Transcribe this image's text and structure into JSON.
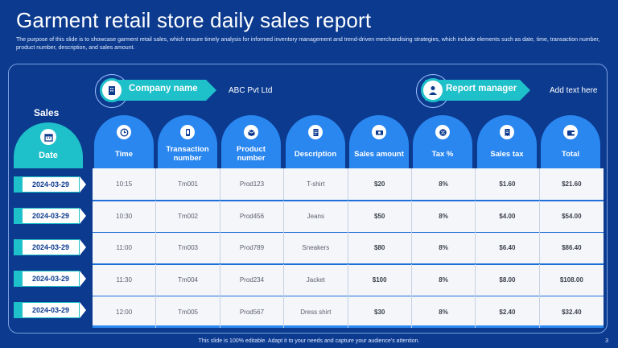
{
  "title": "Garment retail store daily sales report",
  "description": "The purpose of this slide is to showcase garment retail sales, which ensure timely analysis for informed inventory management and trend-driven merchandising strategies, which include elements such as date, time, transaction number, product number, description, and sales amount.",
  "company": {
    "label": "Company name",
    "value": "ABC Pvt Ltd",
    "icon": "building-icon"
  },
  "manager": {
    "label": "Report manager",
    "value": "Add text here",
    "icon": "person-icon"
  },
  "sales_label": "Sales",
  "date_header": {
    "label": "Date",
    "icon": "calendar-icon"
  },
  "columns": [
    {
      "label": "Time",
      "icon": "clock-icon"
    },
    {
      "label": "Transaction number",
      "icon": "phone-icon"
    },
    {
      "label": "Product number",
      "icon": "box-icon"
    },
    {
      "label": "Description",
      "icon": "document-icon"
    },
    {
      "label": "Sales amount",
      "icon": "money-icon"
    },
    {
      "label": "Tax %",
      "icon": "tax-icon"
    },
    {
      "label": "Sales tax",
      "icon": "receipt-icon"
    },
    {
      "label": "Total",
      "icon": "wallet-icon"
    }
  ],
  "rows": [
    {
      "date": "2024-03-29",
      "cells": [
        "10:15",
        "Tm001",
        "Prod123",
        "T-shirt",
        "$20",
        "8%",
        "$1.60",
        "$21.60"
      ]
    },
    {
      "date": "2024-03-29",
      "cells": [
        "10:30",
        "Tm002",
        "Prod456",
        "Jeans",
        "$50",
        "8%",
        "$4.00",
        "$54.00"
      ]
    },
    {
      "date": "2024-03-29",
      "cells": [
        "11:00",
        "Tm003",
        "Prod789",
        "Sneakers",
        "$80",
        "8%",
        "$6.40",
        "$86.40"
      ]
    },
    {
      "date": "2024-03-29",
      "cells": [
        "11:30",
        "Tm004",
        "Prod234",
        "Jacket",
        "$100",
        "8%",
        "$8.00",
        "$108.00"
      ]
    },
    {
      "date": "2024-03-29",
      "cells": [
        "12:00",
        "Tm005",
        "Prod567",
        "Dress shirt",
        "$30",
        "8%",
        "$2.40",
        "$32.40"
      ]
    }
  ],
  "footer": "This slide is 100% editable. Adapt it to your needs and capture your audience's attention.",
  "page_number": "3",
  "colors": {
    "background": "#0b3a8f",
    "accent": "#1ec0c9",
    "header": "#2a87f0"
  }
}
